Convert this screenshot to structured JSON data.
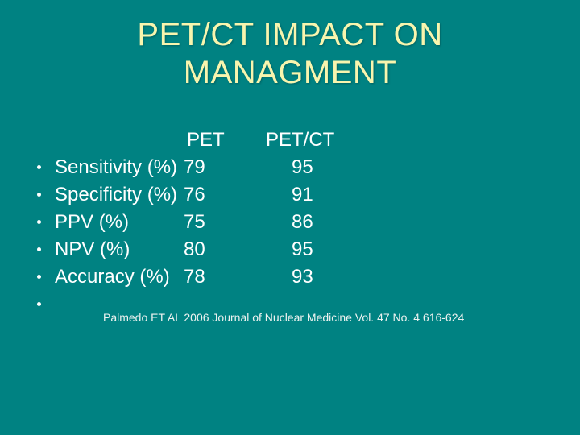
{
  "title": {
    "line1": "PET/CT IMPACT ON",
    "line2": "MANAGMENT"
  },
  "table": {
    "headers": {
      "pet": "PET",
      "petct": "PET/CT"
    },
    "rows": [
      {
        "label": "Sensitivity (%)",
        "pet": "79",
        "petct": "95"
      },
      {
        "label": "Specificity (%)",
        "pet": "76",
        "petct": "91"
      },
      {
        "label": "PPV (%)",
        "pet": "75",
        "petct": "86"
      },
      {
        "label": "NPV (%)",
        "pet": "80",
        "petct": "95"
      },
      {
        "label": "Accuracy (%)",
        "pet": "78",
        "petct": "93"
      }
    ]
  },
  "citation": "Palmedo ET AL 2006 Journal of Nuclear Medicine Vol. 47 No. 4 616-624",
  "colors": {
    "background": "#008282",
    "title": "#F8F5AE",
    "body_text": "#FFFFFF",
    "citation_text": "#EDF2F0"
  }
}
